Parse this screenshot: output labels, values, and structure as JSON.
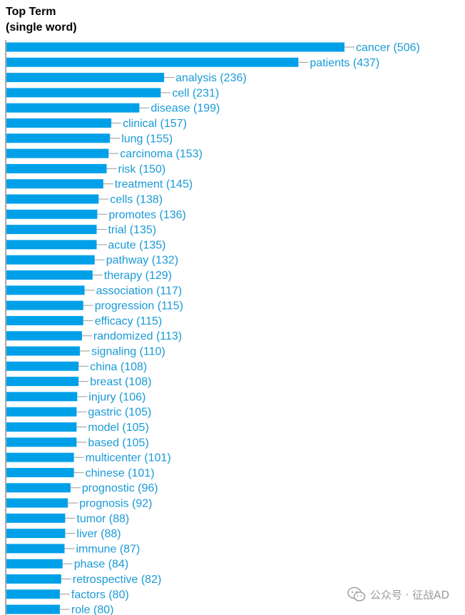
{
  "chart_data": {
    "type": "bar",
    "orientation": "horizontal",
    "title_lines": [
      "Top Term",
      "(single word)"
    ],
    "categories": [
      "cancer",
      "patients",
      "analysis",
      "cell",
      "disease",
      "clinical",
      "lung",
      "carcinoma",
      "risk",
      "treatment",
      "cells",
      "promotes",
      "trial",
      "acute",
      "pathway",
      "therapy",
      "association",
      "progression",
      "efficacy",
      "randomized",
      "signaling",
      "china",
      "breast",
      "injury",
      "gastric",
      "model",
      "based",
      "multicenter",
      "chinese",
      "prognostic",
      "prognosis",
      "tumor",
      "liver",
      "immune",
      "phase",
      "retrospective",
      "factors",
      "role"
    ],
    "values": [
      506,
      437,
      236,
      231,
      199,
      157,
      155,
      153,
      150,
      145,
      138,
      136,
      135,
      135,
      132,
      129,
      117,
      115,
      115,
      113,
      110,
      108,
      108,
      106,
      105,
      105,
      105,
      101,
      101,
      96,
      92,
      88,
      88,
      87,
      84,
      82,
      80,
      80
    ],
    "bar_labels": [
      "cancer (506)",
      "patients (437)",
      "analysis (236)",
      "cell (231)",
      "disease (199)",
      "clinical (157)",
      "lung (155)",
      "carcinoma (153)",
      "risk (150)",
      "treatment (145)",
      "cells (138)",
      "promotes (136)",
      "trial (135)",
      "acute (135)",
      "pathway (132)",
      "therapy (129)",
      "association (117)",
      "progression (115)",
      "efficacy (115)",
      "randomized (113)",
      "signaling (110)",
      "china (108)",
      "breast (108)",
      "injury (106)",
      "gastric (105)",
      "model (105)",
      "based (105)",
      "multicenter (101)",
      "chinese (101)",
      "prognostic (96)",
      "prognosis (92)",
      "tumor (88)",
      "liver (88)",
      "immune (87)",
      "phase (84)",
      "retrospective (82)",
      "factors (80)",
      "role (80)"
    ],
    "xlim": [
      0,
      506
    ],
    "grid": false,
    "legend": "none",
    "colors": {
      "bar": "#00a0e9",
      "label": "#1a9ad6",
      "connector": "#999999",
      "axis": "#555555"
    }
  },
  "watermark": {
    "icon": "wechat-icon",
    "text": "公众号 · 征战AD"
  }
}
